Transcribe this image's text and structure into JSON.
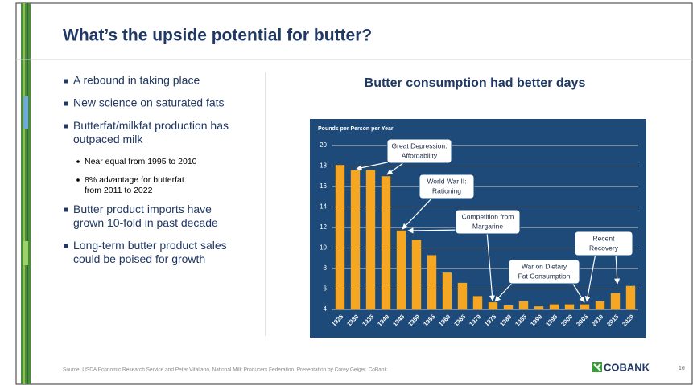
{
  "header": {
    "title": "What’s the upside potential for butter?"
  },
  "bullets": [
    {
      "text": "A rebound in taking place"
    },
    {
      "text": "New science on saturated fats"
    },
    {
      "text": "Butterfat/milkfat production has outpaced milk",
      "sub": [
        "Near equal from 1995 to 2010",
        "8% advantage for butterfat from 2011 to 2022"
      ]
    },
    {
      "text": "Butter product imports have grown 10-fold in past decade"
    },
    {
      "text": "Long-term butter product sales could be poised for growth"
    }
  ],
  "chart_data": {
    "type": "bar",
    "title": "Butter consumption had better days",
    "ylabel": "Pounds per Person per Year",
    "categories": [
      "1925",
      "1930",
      "1935",
      "1940",
      "1945",
      "1950",
      "1955",
      "1960",
      "1965",
      "1970",
      "1975",
      "1980",
      "1985",
      "1990",
      "1995",
      "2000",
      "2005",
      "2010",
      "2015",
      "2020"
    ],
    "values": [
      18.1,
      17.6,
      17.6,
      17.0,
      11.7,
      10.8,
      9.3,
      7.6,
      6.6,
      5.3,
      4.7,
      4.4,
      4.8,
      4.3,
      4.5,
      4.5,
      4.5,
      4.8,
      5.6,
      6.3
    ],
    "color": "#f5a623",
    "ylim": [
      4,
      20
    ],
    "yticks": [
      4,
      6,
      8,
      10,
      12,
      14,
      16,
      18,
      20
    ],
    "grid": true,
    "annotations": [
      [
        "Great Depression:",
        "Affordability"
      ],
      [
        "World War II:",
        "Rationing"
      ],
      [
        "Competition from",
        "Margarine"
      ],
      [
        "War on Dietary",
        "Fat Consumption"
      ],
      [
        "Recent",
        "Recovery"
      ]
    ]
  },
  "footer": {
    "source": "Source: USDA Economic Research Service and Peter Vitaliano, National Milk Producers Federation. Presentation by Corey Geiger, CoBank.",
    "logo": "COBANK",
    "page": "16"
  }
}
